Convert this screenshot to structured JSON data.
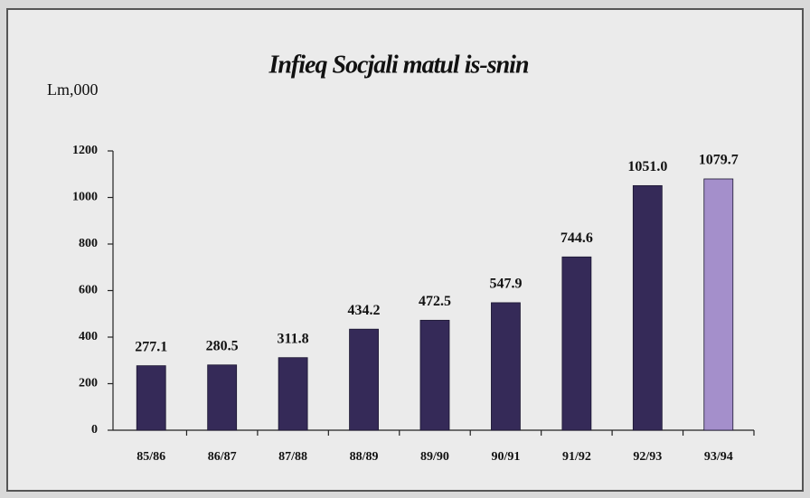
{
  "chart_data": {
    "type": "bar",
    "title": "Infieq Socjali matul is-snin",
    "y_label": "Lm,000",
    "categories": [
      "85/86",
      "86/87",
      "87/88",
      "88/89",
      "89/90",
      "90/91",
      "91/92",
      "92/93",
      "93/94"
    ],
    "values": [
      277.1,
      280.5,
      311.8,
      434.2,
      472.5,
      547.9,
      744.6,
      1051.0,
      1079.7
    ],
    "value_labels": [
      "277.1",
      "280.5",
      "311.8",
      "434.2",
      "472.5",
      "547.9",
      "744.6",
      "1051.0",
      "1079.7"
    ],
    "colors": [
      "#352a58",
      "#352a58",
      "#352a58",
      "#352a58",
      "#352a58",
      "#352a58",
      "#352a58",
      "#352a58",
      "#a48fcb"
    ],
    "ylim": [
      0,
      1200
    ],
    "yticks": [
      0,
      200,
      400,
      600,
      800,
      1000,
      1200
    ]
  }
}
